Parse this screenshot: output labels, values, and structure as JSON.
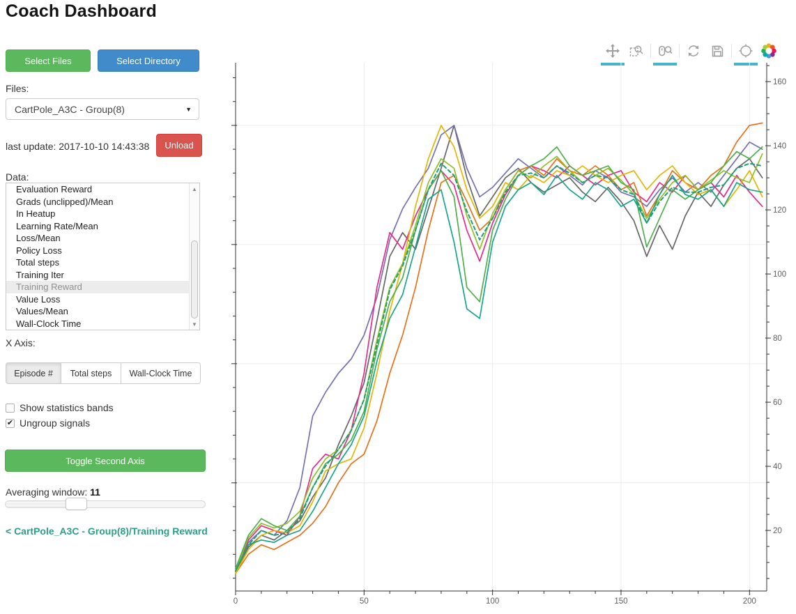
{
  "title": "Coach Dashboard",
  "sidebar": {
    "select_files": "Select Files",
    "select_directory": "Select Directory",
    "files_label": "Files:",
    "files_value": "CartPole_A3C - Group(8)",
    "last_update": "last update: 2017-10-10 14:43:38",
    "unload": "Unload",
    "data_label": "Data:",
    "data_items": [
      "Evaluation Reward",
      "Grads (unclipped)/Mean",
      "In Heatup",
      "Learning Rate/Mean",
      "Loss/Mean",
      "Policy Loss",
      "Total steps",
      "Training Iter",
      "Training Reward",
      "Value Loss",
      "Values/Mean",
      "Wall-Clock Time"
    ],
    "selected_item": "Training Reward",
    "x_axis_label": "X Axis:",
    "x_axis_options": [
      "Episode #",
      "Total steps",
      "Wall-Clock Time"
    ],
    "x_axis_selected": "Episode #",
    "checkboxes": [
      {
        "label": "Show statistics bands",
        "checked": false
      },
      {
        "label": "Ungroup signals",
        "checked": true
      }
    ],
    "toggle_second_axis": "Toggle Second Axis",
    "averaging_label": "Averaging window:",
    "averaging_value": "11",
    "breadcrumb": "< CartPole_A3C - Group(8)/Training Reward"
  },
  "icons": {
    "select_arrow": "▼",
    "scroll_up": "▲",
    "scroll_down": "▼",
    "check_mark": "✔"
  },
  "colors": {
    "green_button": "#5cb85c",
    "blue_button": "#428bca",
    "red_button": "#d9534f",
    "link_teal": "#2d9e88",
    "active_tool_bar": "#45b5c8"
  },
  "toolbar": {
    "tools": [
      {
        "name": "pan",
        "active": true
      },
      {
        "name": "box-zoom",
        "active": false
      },
      {
        "name": "wheel-zoom",
        "active": true
      },
      {
        "name": "reset",
        "active": false
      },
      {
        "name": "save",
        "active": false
      },
      {
        "name": "hover",
        "active": true
      },
      {
        "name": "bokeh-logo",
        "active": false
      }
    ]
  },
  "chart_data": {
    "type": "line",
    "title": "",
    "xlabel": "",
    "ylabel": "",
    "legend": "none",
    "grid": "on",
    "x_axis": {
      "range": [
        0,
        206.7
      ],
      "ticks_major": [
        0,
        50,
        100,
        150,
        200
      ],
      "minor_step": 10
    },
    "y_left": {
      "range": [
        4.6,
        226.3
      ],
      "ticks_major": [
        50,
        100,
        150,
        200
      ],
      "minor_step": 10
    },
    "y_right": {
      "range": [
        1.1,
        165.9
      ],
      "ticks_major": [
        20,
        40,
        60,
        80,
        100,
        120,
        140,
        160
      ],
      "minor_step": 5
    },
    "x": [
      0,
      5,
      10,
      15,
      20,
      25,
      30,
      35,
      40,
      45,
      50,
      55,
      60,
      65,
      70,
      75,
      80,
      85,
      90,
      95,
      100,
      105,
      110,
      115,
      120,
      125,
      130,
      135,
      140,
      145,
      150,
      155,
      160,
      165,
      170,
      175,
      180,
      185,
      190,
      195,
      200,
      205
    ],
    "series": [
      {
        "name": "worker-gray",
        "color": "#666666",
        "dash": false,
        "values": [
          12,
          23,
          28,
          26,
          30,
          34,
          44,
          52,
          66,
          78,
          92,
          118,
          145,
          155,
          148,
          165,
          182,
          200,
          178,
          162,
          170,
          178,
          182,
          176,
          172,
          175,
          178,
          172,
          168,
          174,
          168,
          160,
          145,
          158,
          148,
          162,
          172,
          166,
          175,
          182,
          186,
          178
        ]
      },
      {
        "name": "worker-purple",
        "color": "#7570b3",
        "dash": false,
        "values": [
          14,
          25,
          30,
          28,
          34,
          48,
          78,
          88,
          96,
          102,
          112,
          128,
          152,
          165,
          174,
          182,
          196,
          200,
          182,
          170,
          174,
          180,
          186,
          182,
          178,
          183,
          179,
          175,
          181,
          178,
          172,
          170,
          166,
          173,
          178,
          172,
          176,
          172,
          179,
          186,
          193,
          190
        ]
      },
      {
        "name": "worker-magenta",
        "color": "#e7298a",
        "dash": false,
        "values": [
          13,
          26,
          32,
          30,
          28,
          36,
          56,
          62,
          60,
          72,
          96,
          132,
          155,
          148,
          162,
          173,
          181,
          175,
          156,
          143,
          159,
          171,
          179,
          183,
          181,
          178,
          183,
          179,
          175,
          179,
          181,
          172,
          168,
          176,
          172,
          179,
          173,
          176,
          170,
          179,
          172,
          166
        ]
      },
      {
        "name": "worker-orange",
        "color": "#e8701a",
        "dash": false,
        "values": [
          12,
          20,
          24,
          22,
          25,
          28,
          33,
          40,
          50,
          58,
          62,
          76,
          96,
          112,
          132,
          156,
          176,
          179,
          168,
          156,
          161,
          173,
          181,
          183,
          179,
          186,
          181,
          179,
          183,
          179,
          173,
          176,
          162,
          171,
          181,
          176,
          173,
          179,
          183,
          193,
          200,
          201
        ]
      },
      {
        "name": "worker-gold",
        "color": "#e6b502",
        "dash": false,
        "values": [
          12,
          22,
          28,
          30,
          29,
          32,
          42,
          55,
          58,
          60,
          73,
          96,
          122,
          142,
          166,
          186,
          200,
          191,
          173,
          161,
          166,
          176,
          173,
          179,
          176,
          181,
          179,
          183,
          179,
          176,
          179,
          181,
          173,
          179,
          183,
          176,
          171,
          173,
          166,
          173,
          181,
          170
        ]
      },
      {
        "name": "worker-yellowgreen",
        "color": "#8fbf26",
        "dash": false,
        "values": [
          13,
          27,
          33,
          31,
          33,
          38,
          52,
          60,
          64,
          72,
          85,
          110,
          132,
          142,
          158,
          176,
          186,
          182,
          162,
          148,
          163,
          173,
          181,
          178,
          183,
          187,
          181,
          176,
          179,
          182,
          177,
          171,
          161,
          169,
          176,
          179,
          173,
          177,
          181,
          178,
          176,
          188
        ]
      },
      {
        "name": "worker-green",
        "color": "#4daf4a",
        "dash": false,
        "values": [
          14,
          28,
          35,
          32,
          30,
          36,
          48,
          58,
          62,
          68,
          80,
          106,
          126,
          136,
          156,
          173,
          181,
          170,
          132,
          126,
          156,
          169,
          179,
          183,
          186,
          191,
          183,
          179,
          181,
          183,
          176,
          173,
          149,
          161,
          173,
          169,
          173,
          176,
          183,
          189,
          186,
          191
        ]
      },
      {
        "name": "worker-teal",
        "color": "#17a589",
        "dash": false,
        "values": [
          13,
          24,
          26,
          25,
          28,
          30,
          38,
          48,
          58,
          66,
          78,
          101,
          119,
          129,
          149,
          169,
          173,
          151,
          123,
          119,
          151,
          166,
          173,
          176,
          171,
          179,
          173,
          169,
          176,
          173,
          166,
          169,
          159,
          171,
          179,
          171,
          169,
          173,
          166,
          176,
          173,
          172
        ]
      },
      {
        "name": "mean",
        "color": "#1b9e77",
        "dash": true,
        "values": [
          13,
          24,
          30,
          28,
          29,
          35,
          48,
          57,
          64,
          72,
          85,
          108,
          131,
          141,
          156,
          173,
          184,
          179,
          164,
          152,
          161,
          172,
          179,
          180,
          178,
          183,
          180,
          176,
          179,
          178,
          173,
          171,
          159,
          168,
          174,
          172,
          172,
          174,
          175,
          182,
          184,
          183
        ]
      }
    ]
  }
}
